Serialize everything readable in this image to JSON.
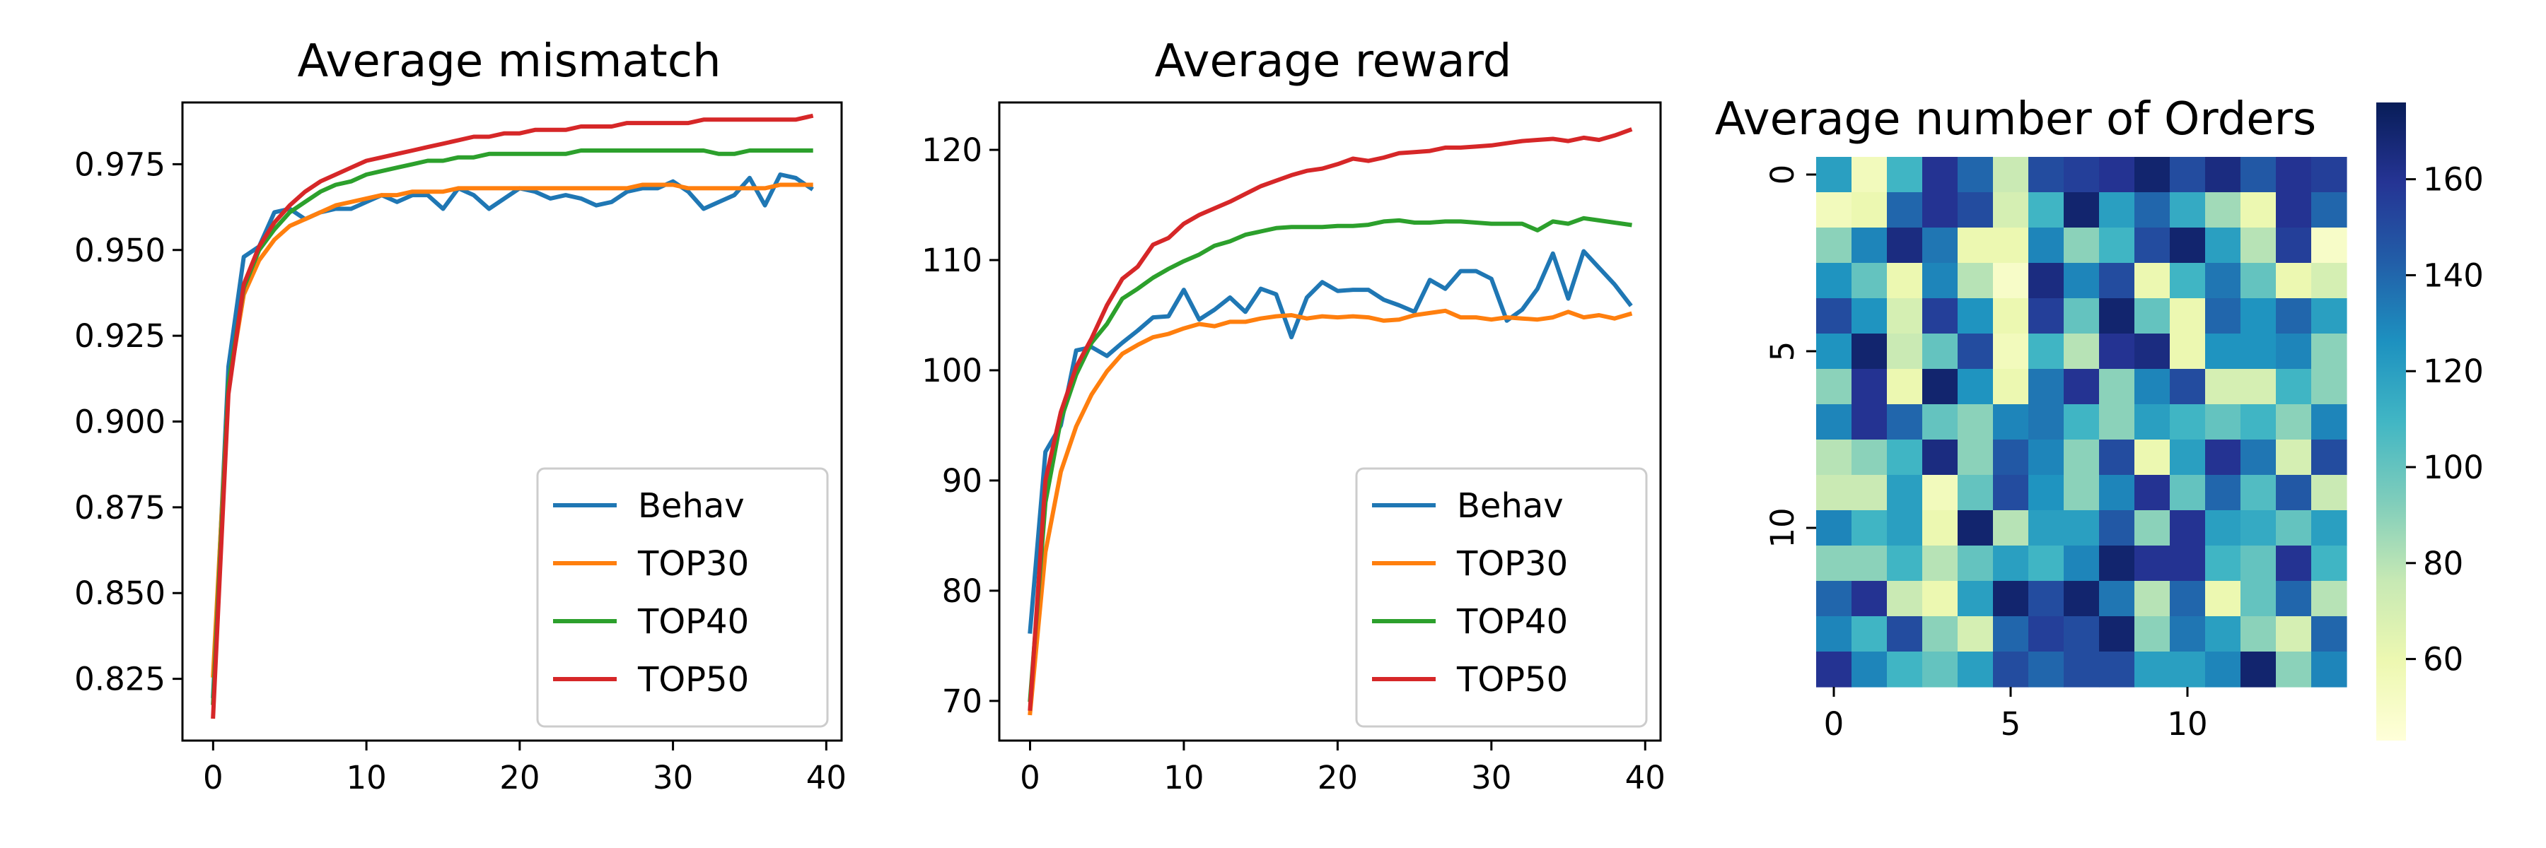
{
  "figure": {
    "colors": {
      "Behav": "#1f77b4",
      "TOP30": "#ff7f0e",
      "TOP40": "#2ca02c",
      "TOP50": "#d62728"
    }
  },
  "chart_data": [
    {
      "type": "line",
      "title": "Average mismatch",
      "xlabel": "",
      "ylabel": "",
      "xlim": [
        -2,
        41
      ],
      "ylim": [
        0.807,
        0.993
      ],
      "xticks": [
        0,
        10,
        20,
        30,
        40
      ],
      "yticks": [
        0.825,
        0.85,
        0.875,
        0.9,
        0.925,
        0.95,
        0.975
      ],
      "ytick_labels": [
        "0.825",
        "0.850",
        "0.875",
        "0.900",
        "0.925",
        "0.950",
        "0.975"
      ],
      "legend_location": "lower right",
      "x": [
        0,
        1,
        2,
        3,
        4,
        5,
        6,
        7,
        8,
        9,
        10,
        11,
        12,
        13,
        14,
        15,
        16,
        17,
        18,
        19,
        20,
        21,
        22,
        23,
        24,
        25,
        26,
        27,
        28,
        29,
        30,
        31,
        32,
        33,
        34,
        35,
        36,
        37,
        38,
        39
      ],
      "series": [
        {
          "name": "Behav",
          "color": "#1f77b4",
          "values": [
            0.82,
            0.916,
            0.948,
            0.951,
            0.961,
            0.962,
            0.959,
            0.961,
            0.962,
            0.962,
            0.964,
            0.966,
            0.964,
            0.966,
            0.966,
            0.962,
            0.968,
            0.966,
            0.962,
            0.965,
            0.968,
            0.967,
            0.965,
            0.966,
            0.965,
            0.963,
            0.964,
            0.967,
            0.968,
            0.968,
            0.97,
            0.967,
            0.962,
            0.964,
            0.966,
            0.971,
            0.963,
            0.972,
            0.971,
            0.968
          ]
        },
        {
          "name": "TOP30",
          "color": "#ff7f0e",
          "values": [
            0.826,
            0.91,
            0.937,
            0.947,
            0.953,
            0.957,
            0.959,
            0.961,
            0.963,
            0.964,
            0.965,
            0.966,
            0.966,
            0.967,
            0.967,
            0.967,
            0.968,
            0.968,
            0.968,
            0.968,
            0.968,
            0.968,
            0.968,
            0.968,
            0.968,
            0.968,
            0.968,
            0.968,
            0.969,
            0.969,
            0.969,
            0.968,
            0.968,
            0.968,
            0.968,
            0.968,
            0.968,
            0.969,
            0.969,
            0.969
          ]
        },
        {
          "name": "TOP40",
          "color": "#2ca02c",
          "values": [
            0.818,
            0.911,
            0.939,
            0.95,
            0.956,
            0.961,
            0.964,
            0.967,
            0.969,
            0.97,
            0.972,
            0.973,
            0.974,
            0.975,
            0.976,
            0.976,
            0.977,
            0.977,
            0.978,
            0.978,
            0.978,
            0.978,
            0.978,
            0.978,
            0.979,
            0.979,
            0.979,
            0.979,
            0.979,
            0.979,
            0.979,
            0.979,
            0.979,
            0.978,
            0.978,
            0.979,
            0.979,
            0.979,
            0.979,
            0.979
          ]
        },
        {
          "name": "TOP50",
          "color": "#d62728",
          "values": [
            0.814,
            0.908,
            0.94,
            0.951,
            0.958,
            0.963,
            0.967,
            0.97,
            0.972,
            0.974,
            0.976,
            0.977,
            0.978,
            0.979,
            0.98,
            0.981,
            0.982,
            0.983,
            0.983,
            0.984,
            0.984,
            0.985,
            0.985,
            0.985,
            0.986,
            0.986,
            0.986,
            0.987,
            0.987,
            0.987,
            0.987,
            0.987,
            0.988,
            0.988,
            0.988,
            0.988,
            0.988,
            0.988,
            0.988,
            0.989
          ]
        }
      ]
    },
    {
      "type": "line",
      "title": "Average reward",
      "xlabel": "",
      "ylabel": "",
      "xlim": [
        -2,
        41
      ],
      "ylim": [
        66.4,
        124.3
      ],
      "xticks": [
        0,
        10,
        20,
        30,
        40
      ],
      "yticks": [
        70,
        80,
        90,
        100,
        110,
        120
      ],
      "ytick_labels": [
        "70",
        "80",
        "90",
        "100",
        "110",
        "120"
      ],
      "legend_location": "lower right",
      "x": [
        0,
        1,
        2,
        3,
        4,
        5,
        6,
        7,
        8,
        9,
        10,
        11,
        12,
        13,
        14,
        15,
        16,
        17,
        18,
        19,
        20,
        21,
        22,
        23,
        24,
        25,
        26,
        27,
        28,
        29,
        30,
        31,
        32,
        33,
        34,
        35,
        36,
        37,
        38,
        39
      ],
      "series": [
        {
          "name": "Behav",
          "color": "#1f77b4",
          "values": [
            76.3,
            92.6,
            95.0,
            101.8,
            102.1,
            101.3,
            102.5,
            103.6,
            104.8,
            104.9,
            107.3,
            104.6,
            105.5,
            106.6,
            105.3,
            107.4,
            106.9,
            103.0,
            106.6,
            108.0,
            107.2,
            107.3,
            107.3,
            106.4,
            105.9,
            105.3,
            108.2,
            107.4,
            109.0,
            109.0,
            108.3,
            104.5,
            105.5,
            107.4,
            110.6,
            106.5,
            110.8,
            109.3,
            107.8,
            106.0
          ]
        },
        {
          "name": "TOP30",
          "color": "#ff7f0e",
          "values": [
            68.9,
            83.5,
            90.8,
            94.9,
            97.8,
            99.9,
            101.5,
            102.3,
            103.0,
            103.3,
            103.8,
            104.2,
            104.0,
            104.4,
            104.4,
            104.7,
            104.9,
            105.0,
            104.7,
            104.9,
            104.8,
            104.9,
            104.8,
            104.5,
            104.6,
            105.0,
            105.2,
            105.4,
            104.8,
            104.8,
            104.6,
            104.8,
            104.7,
            104.6,
            104.8,
            105.3,
            104.8,
            105.0,
            104.7,
            105.1
          ]
        },
        {
          "name": "TOP40",
          "color": "#2ca02c",
          "values": [
            70.1,
            88.0,
            95.5,
            99.6,
            102.5,
            104.2,
            106.5,
            107.4,
            108.4,
            109.2,
            109.9,
            110.5,
            111.3,
            111.7,
            112.3,
            112.6,
            112.9,
            113.0,
            113.0,
            113.0,
            113.1,
            113.1,
            113.2,
            113.5,
            113.6,
            113.4,
            113.4,
            113.5,
            113.5,
            113.4,
            113.3,
            113.3,
            113.3,
            112.7,
            113.5,
            113.3,
            113.8,
            113.6,
            113.4,
            113.2
          ]
        },
        {
          "name": "TOP50",
          "color": "#d62728",
          "values": [
            69.3,
            90.0,
            96.2,
            100.3,
            102.9,
            105.9,
            108.3,
            109.4,
            111.4,
            112.0,
            113.3,
            114.1,
            114.7,
            115.3,
            116.0,
            116.7,
            117.2,
            117.7,
            118.1,
            118.3,
            118.7,
            119.2,
            119.0,
            119.3,
            119.7,
            119.8,
            119.9,
            120.2,
            120.2,
            120.3,
            120.4,
            120.6,
            120.8,
            120.9,
            121.0,
            120.8,
            121.1,
            120.9,
            121.3,
            121.8
          ]
        }
      ]
    },
    {
      "type": "heatmap",
      "title": "Average number of Orders",
      "xlabel": "",
      "ylabel": "",
      "xticks": [
        0,
        5,
        10
      ],
      "yticks": [
        0,
        5,
        10
      ],
      "colorbar": {
        "colormap": "YlGnBu",
        "range": [
          43,
          176
        ],
        "ticks": [
          60,
          80,
          100,
          120,
          140,
          160
        ]
      },
      "rows": 15,
      "cols": 15,
      "values": [
        [
          120,
          55,
          110,
          160,
          140,
          75,
          150,
          155,
          160,
          170,
          150,
          165,
          145,
          160,
          155
        ],
        [
          55,
          60,
          140,
          160,
          150,
          70,
          110,
          170,
          120,
          140,
          115,
          85,
          60,
          160,
          140
        ],
        [
          90,
          130,
          165,
          135,
          60,
          60,
          130,
          90,
          110,
          150,
          170,
          120,
          80,
          155,
          50
        ],
        [
          125,
          100,
          60,
          130,
          80,
          50,
          165,
          130,
          150,
          60,
          110,
          135,
          100,
          60,
          70
        ],
        [
          150,
          125,
          70,
          155,
          125,
          60,
          155,
          100,
          170,
          100,
          60,
          140,
          125,
          140,
          120
        ],
        [
          125,
          170,
          75,
          100,
          150,
          55,
          110,
          80,
          160,
          165,
          60,
          125,
          125,
          130,
          90
        ],
        [
          90,
          160,
          60,
          170,
          125,
          60,
          135,
          160,
          90,
          130,
          150,
          70,
          70,
          110,
          90
        ],
        [
          130,
          160,
          140,
          100,
          90,
          130,
          135,
          110,
          90,
          120,
          110,
          100,
          110,
          90,
          130
        ],
        [
          80,
          90,
          110,
          165,
          90,
          145,
          130,
          90,
          150,
          60,
          120,
          160,
          135,
          70,
          150
        ],
        [
          75,
          75,
          120,
          55,
          100,
          150,
          125,
          90,
          130,
          160,
          100,
          140,
          105,
          145,
          75
        ],
        [
          130,
          110,
          120,
          60,
          170,
          80,
          120,
          120,
          145,
          90,
          160,
          120,
          115,
          100,
          120
        ],
        [
          90,
          90,
          110,
          80,
          100,
          120,
          110,
          130,
          170,
          160,
          160,
          110,
          100,
          160,
          110
        ],
        [
          140,
          160,
          75,
          60,
          120,
          170,
          150,
          170,
          135,
          80,
          140,
          60,
          100,
          140,
          80
        ],
        [
          130,
          110,
          150,
          90,
          70,
          140,
          155,
          150,
          170,
          90,
          135,
          120,
          90,
          70,
          140
        ],
        [
          160,
          130,
          110,
          100,
          120,
          150,
          140,
          150,
          150,
          120,
          120,
          130,
          170,
          90,
          130
        ]
      ]
    }
  ]
}
